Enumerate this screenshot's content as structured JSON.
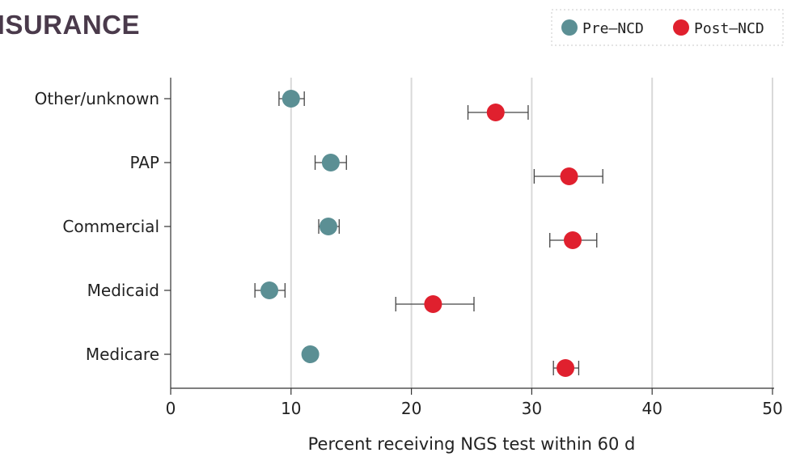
{
  "panel": {
    "title": "NSURANCE"
  },
  "chart_data": {
    "type": "scatter",
    "subtype": "dot-plot-with-error-bars",
    "title": "",
    "xlabel": "Percent receiving NGS test within 60 d",
    "ylabel": "",
    "xlim": [
      0,
      50
    ],
    "xticks": [
      0,
      10,
      20,
      30,
      40,
      50
    ],
    "categories": [
      "Other/unknown",
      "PAP",
      "Commercial",
      "Medicaid",
      "Medicare"
    ],
    "legend_position": "top-right",
    "grid": "vertical",
    "series": [
      {
        "name": "Pre–NCD",
        "color": "#5b8f94",
        "points": [
          {
            "category": "Other/unknown",
            "value": 10.0,
            "lower": 9.0,
            "upper": 11.1
          },
          {
            "category": "PAP",
            "value": 13.3,
            "lower": 12.0,
            "upper": 14.6
          },
          {
            "category": "Commercial",
            "value": 13.1,
            "lower": 12.3,
            "upper": 14.0
          },
          {
            "category": "Medicaid",
            "value": 8.2,
            "lower": 7.0,
            "upper": 9.5
          },
          {
            "category": "Medicare",
            "value": 11.6,
            "lower": 11.2,
            "upper": 12.0
          }
        ]
      },
      {
        "name": "Post–NCD",
        "color": "#e0202e",
        "points": [
          {
            "category": "Other/unknown",
            "value": 27.0,
            "lower": 24.7,
            "upper": 29.7
          },
          {
            "category": "PAP",
            "value": 33.1,
            "lower": 30.2,
            "upper": 35.9
          },
          {
            "category": "Commercial",
            "value": 33.4,
            "lower": 31.5,
            "upper": 35.4
          },
          {
            "category": "Medicaid",
            "value": 21.8,
            "lower": 18.7,
            "upper": 25.2
          },
          {
            "category": "Medicare",
            "value": 32.8,
            "lower": 31.8,
            "upper": 33.9
          }
        ]
      }
    ]
  }
}
